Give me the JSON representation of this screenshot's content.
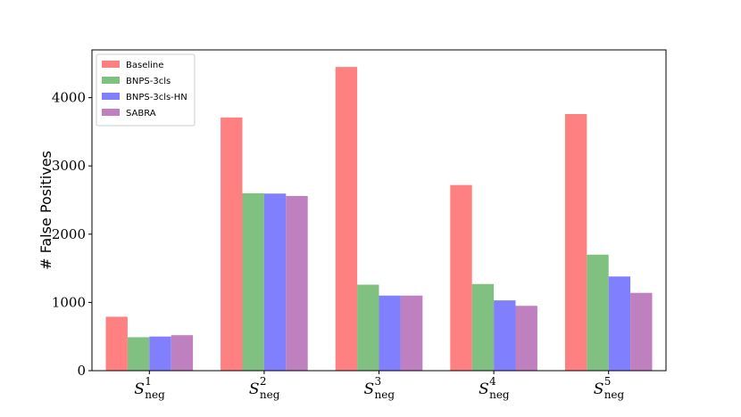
{
  "chart_data": {
    "type": "bar",
    "title": "",
    "xlabel": "",
    "ylabel": "# False Positives",
    "ylim": [
      0,
      4700
    ],
    "yticks": [
      0,
      1000,
      2000,
      3000,
      4000
    ],
    "grid": false,
    "legend_position": "top-left",
    "categories": [
      {
        "base": "S",
        "sup": "1",
        "sub": "neg"
      },
      {
        "base": "S",
        "sup": "2",
        "sub": "neg"
      },
      {
        "base": "S",
        "sup": "3",
        "sub": "neg"
      },
      {
        "base": "S",
        "sup": "4",
        "sub": "neg"
      },
      {
        "base": "S",
        "sup": "5",
        "sub": "neg"
      }
    ],
    "series": [
      {
        "name": "Baseline",
        "color": "#ff8080",
        "values": [
          790,
          3710,
          4450,
          2720,
          3760
        ]
      },
      {
        "name": "BNPS-3cls",
        "color": "#80c080",
        "values": [
          490,
          2600,
          1260,
          1270,
          1700
        ]
      },
      {
        "name": "BNPS-3cls-HN",
        "color": "#8080ff",
        "values": [
          500,
          2595,
          1100,
          1030,
          1380
        ]
      },
      {
        "name": "SABRA",
        "color": "#bf80bf",
        "values": [
          520,
          2560,
          1100,
          950,
          1140
        ]
      }
    ]
  }
}
